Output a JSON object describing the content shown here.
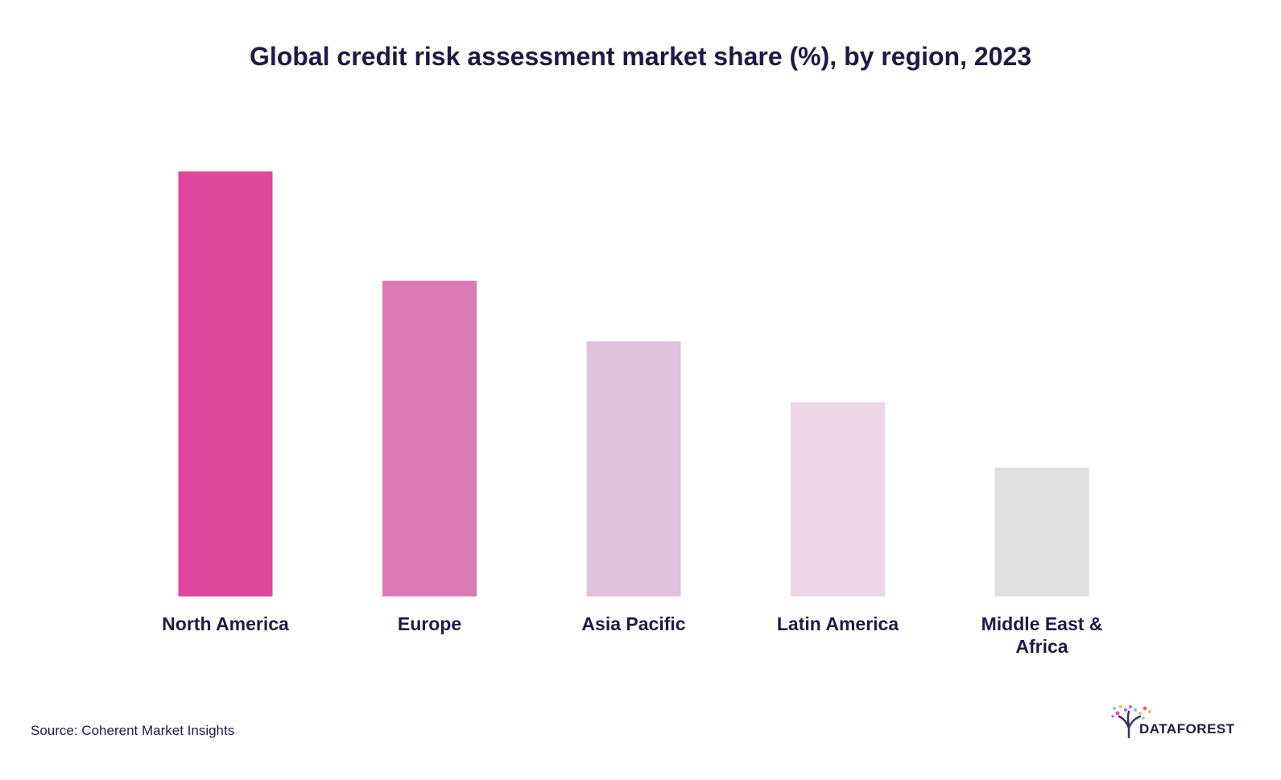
{
  "chart_data": {
    "type": "bar",
    "title": "Global credit risk assessment market share (%), by region, 2023",
    "xlabel": "",
    "ylabel": "",
    "categories": [
      "North America",
      "Europe",
      "Asia Pacific",
      "Latin America",
      "Middle East & Africa"
    ],
    "category_lines": [
      [
        "North America"
      ],
      [
        "Europe"
      ],
      [
        "Asia Pacific"
      ],
      [
        "Latin America"
      ],
      [
        "Middle East &",
        "Africa"
      ]
    ],
    "values": [
      35.0,
      26.0,
      21.0,
      16.0,
      10.6
    ],
    "colors": [
      "#de479c",
      "#dc7ab5",
      "#dfc2dc",
      "#ecd5e6",
      "#dfdfe1"
    ],
    "ylim": [
      0,
      40
    ],
    "grid": false,
    "legend": "none"
  },
  "source": "Source: Coherent Market Insights",
  "logo": {
    "text": "DATAFOREST",
    "icon": "tree-icon"
  }
}
